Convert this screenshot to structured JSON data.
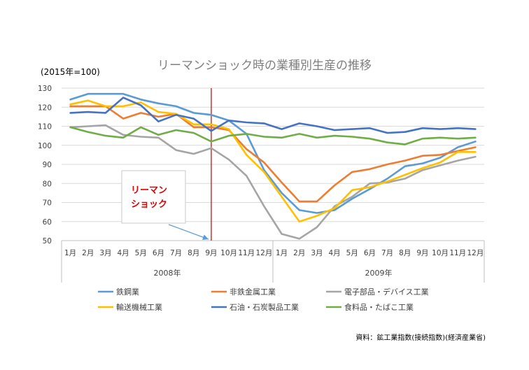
{
  "chart_data": {
    "type": "line",
    "title": "リーマンショック時の業種別生産の推移",
    "unit_label": "(2015年=100)",
    "ylim": [
      50,
      130
    ],
    "yticks": [
      50,
      60,
      70,
      80,
      90,
      100,
      110,
      120,
      130
    ],
    "grid": true,
    "legend_position": "bottom",
    "x": [
      "1月",
      "2月",
      "3月",
      "4月",
      "5月",
      "6月",
      "7月",
      "8月",
      "9月",
      "10月",
      "11月",
      "12月",
      "1月",
      "2月",
      "3月",
      "4月",
      "5月",
      "6月",
      "7月",
      "8月",
      "9月",
      "10月",
      "11月",
      "12月"
    ],
    "year_groups": [
      {
        "label": "2008年",
        "start": 0,
        "end": 11
      },
      {
        "label": "2009年",
        "start": 12,
        "end": 23
      }
    ],
    "event_marker": {
      "index": 8,
      "color": "#c00000"
    },
    "annotation": {
      "lines": [
        "リーマン",
        "ショック"
      ],
      "color": "#e00000",
      "target_index": 8
    },
    "series": [
      {
        "name": "鉄鋼業",
        "color": "#5b9bd5",
        "values": [
          124,
          127,
          127,
          127,
          124,
          122,
          120.5,
          117,
          116,
          113,
          106,
          87,
          75,
          66,
          64.5,
          66,
          72,
          77,
          82.5,
          89,
          90.5,
          93.5,
          99,
          102
        ]
      },
      {
        "name": "非鉄金属工業",
        "color": "#ed7d31",
        "values": [
          120.5,
          120.5,
          120.5,
          114,
          117,
          115,
          116.5,
          109.5,
          109.5,
          108,
          98,
          91,
          80.5,
          70.5,
          70.5,
          79,
          86,
          87.5,
          90,
          92,
          94.5,
          95,
          97,
          99
        ]
      },
      {
        "name": "電子部品・デバイス工業",
        "color": "#a5a5a5",
        "values": [
          109.5,
          110,
          110.5,
          105.5,
          104.5,
          104,
          97.5,
          95.5,
          98.5,
          92.5,
          84,
          68,
          53.5,
          51,
          57,
          68,
          73,
          80,
          80.5,
          82.5,
          87,
          89.5,
          92,
          94
        ]
      },
      {
        "name": "輸送機械工業",
        "color": "#ffc000",
        "values": [
          121.5,
          123.5,
          120.5,
          120.5,
          122.5,
          117.5,
          116.5,
          111,
          111,
          108.5,
          95,
          86,
          73,
          60,
          63,
          67,
          76.5,
          78,
          81,
          84.5,
          88,
          91,
          96.5,
          96.5
        ]
      },
      {
        "name": "石油・石炭製品工業",
        "color": "#4472c4",
        "values": [
          117,
          117.5,
          117,
          125,
          121,
          112.5,
          116,
          114,
          107.5,
          113,
          112,
          111.5,
          108.5,
          111.5,
          110,
          108,
          108.5,
          109,
          106.5,
          107,
          109,
          108.5,
          109,
          108.5
        ]
      },
      {
        "name": "食料品・たばこ工業",
        "color": "#70ad47",
        "values": [
          109.5,
          107,
          105,
          104,
          109.5,
          105.5,
          108,
          106.5,
          102,
          105,
          106,
          104.5,
          104,
          106,
          104,
          105,
          104.5,
          103.5,
          101.5,
          100.5,
          103.5,
          104,
          103.5,
          104
        ]
      }
    ]
  },
  "source": "資料：鉱工業指数(接続指数)(経済産業省)"
}
